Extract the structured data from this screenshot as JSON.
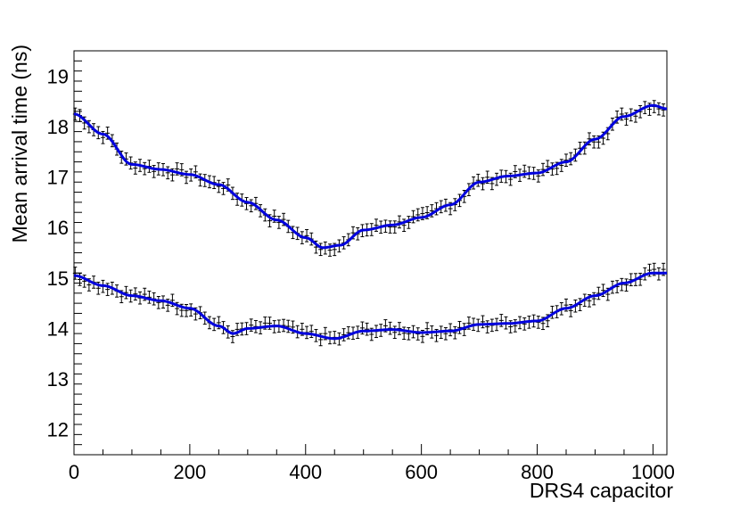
{
  "chart_data": {
    "type": "scatter",
    "title": "",
    "xlabel": "DRS4 capacitor",
    "ylabel": "Mean arrival time (ns)",
    "xlim": [
      0,
      1024
    ],
    "ylim": [
      11.5,
      19.5
    ],
    "x_ticks": [
      0,
      200,
      400,
      600,
      800,
      1000
    ],
    "x_tick_labels": [
      "0",
      "200",
      "400",
      "600",
      "800",
      "1000"
    ],
    "y_ticks": [
      12,
      13,
      14,
      15,
      16,
      17,
      18,
      19
    ],
    "y_tick_labels": [
      "12",
      "13",
      "14",
      "15",
      "16",
      "17",
      "18",
      "19"
    ],
    "grid": false,
    "legend": "none",
    "marker_color": "#000000",
    "fit_color": "#0000dd",
    "error_bar": 0.12,
    "point_step": 8,
    "series": [
      {
        "markers": "black points with error bars",
        "fit_line": "blue smooth curve",
        "x": [
          0,
          50,
          100,
          150,
          200,
          250,
          300,
          350,
          400,
          430,
          460,
          500,
          550,
          600,
          650,
          700,
          750,
          800,
          850,
          900,
          950,
          1000,
          1024
        ],
        "y": [
          18.25,
          17.85,
          17.25,
          17.15,
          17.05,
          16.85,
          16.5,
          16.15,
          15.8,
          15.6,
          15.65,
          15.95,
          16.05,
          16.2,
          16.45,
          16.9,
          17.02,
          17.08,
          17.3,
          17.75,
          18.2,
          18.42,
          18.35
        ]
      },
      {
        "markers": "black points with error bars",
        "fit_line": "blue smooth curve",
        "x": [
          0,
          50,
          100,
          150,
          200,
          250,
          275,
          300,
          350,
          400,
          450,
          500,
          550,
          600,
          650,
          700,
          750,
          800,
          850,
          900,
          950,
          1000,
          1024
        ],
        "y": [
          15.05,
          14.85,
          14.65,
          14.55,
          14.4,
          14.05,
          13.9,
          14.0,
          14.05,
          13.9,
          13.8,
          13.95,
          13.98,
          13.92,
          13.95,
          14.08,
          14.1,
          14.15,
          14.4,
          14.65,
          14.9,
          15.1,
          15.1
        ]
      }
    ]
  }
}
